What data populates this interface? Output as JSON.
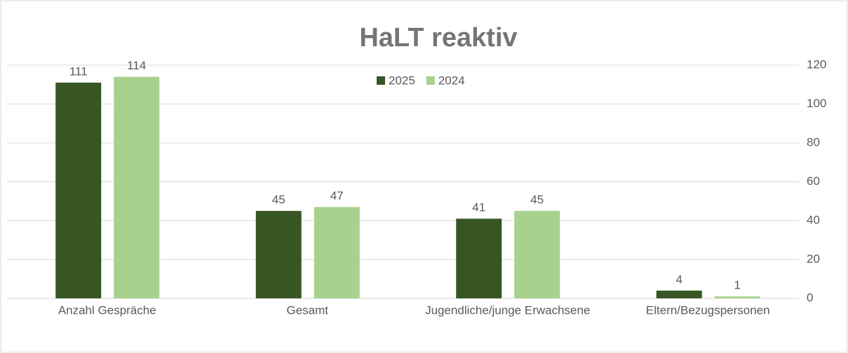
{
  "chart_data": {
    "type": "bar",
    "title": "HaLT reaktiv",
    "categories": [
      "Anzahl Gespräche",
      "Gesamt",
      "Jugendliche/junge Erwachsene",
      "Eltern/Bezugspersonen"
    ],
    "series": [
      {
        "name": "2025",
        "color": "#375623",
        "values": [
          111,
          45,
          41,
          4
        ]
      },
      {
        "name": "2024",
        "color": "#a9d18e",
        "values": [
          114,
          47,
          45,
          1
        ]
      }
    ],
    "ylim": [
      0,
      120
    ],
    "yticks": [
      0,
      20,
      40,
      60,
      80,
      100,
      120
    ],
    "grid": true,
    "legend": "top"
  }
}
